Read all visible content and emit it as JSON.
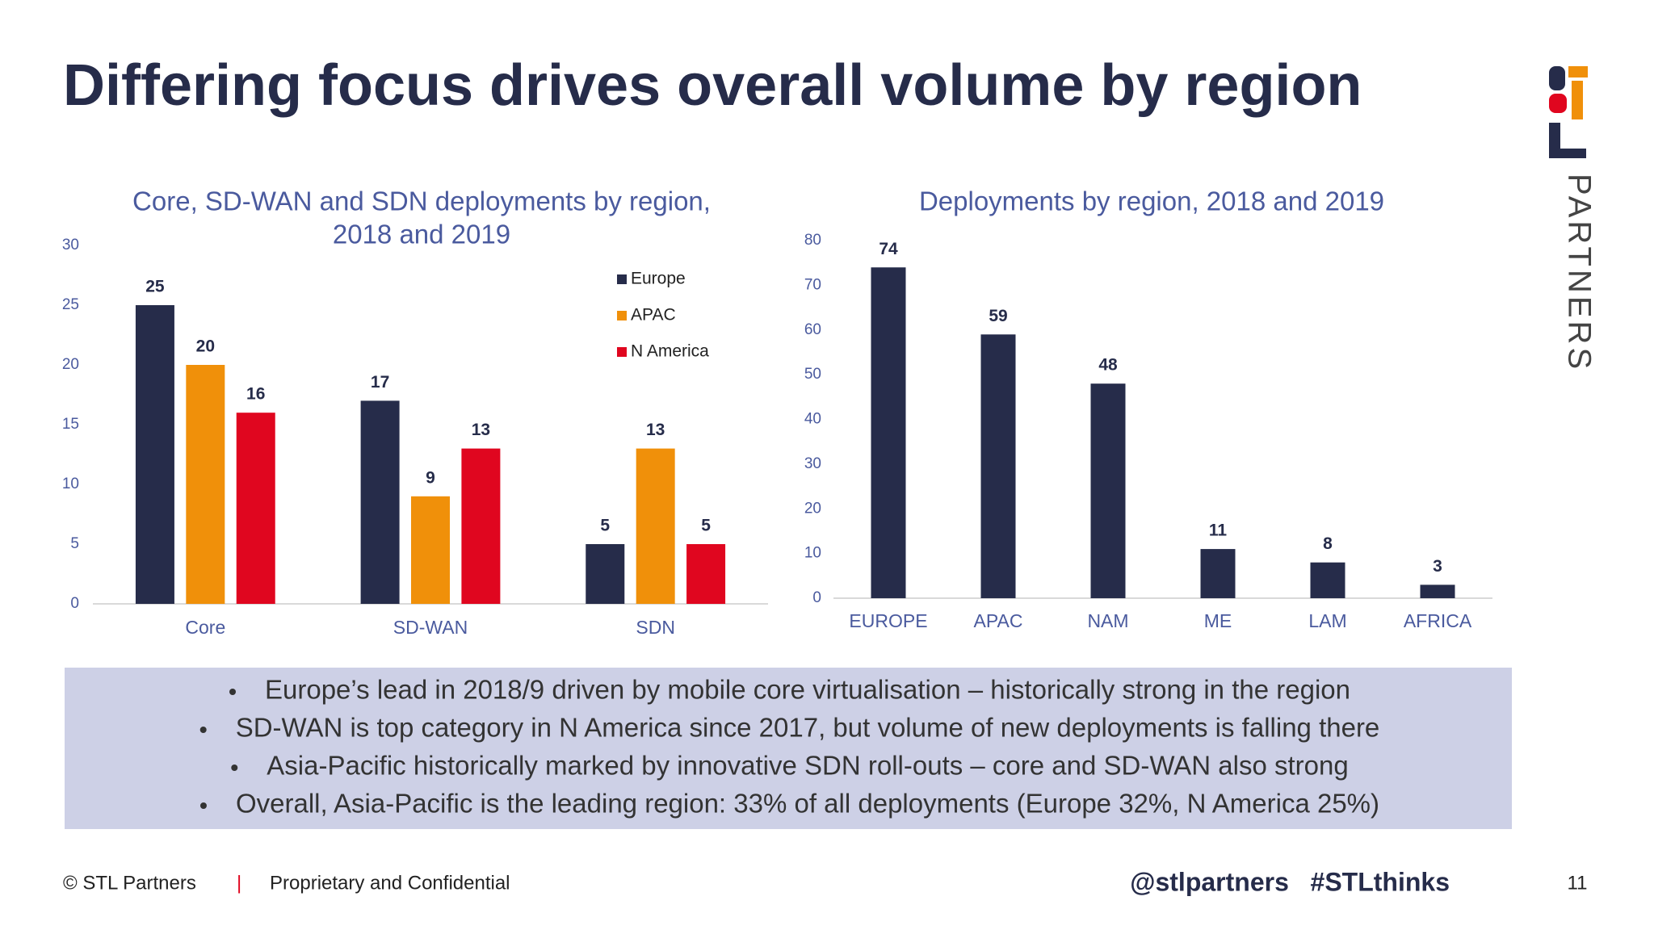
{
  "header": {
    "title": "Differing focus drives overall volume by region"
  },
  "logo": {
    "text": "PARTNERS"
  },
  "chart_data": [
    {
      "type": "bar",
      "title": [
        "Core, SD-WAN and SDN deployments by region,",
        "2018 and 2019"
      ],
      "categories": [
        "Core",
        "SD-WAN",
        "SDN"
      ],
      "series": [
        {
          "name": "Europe",
          "color": "#262c4a",
          "values": [
            25,
            17,
            5
          ]
        },
        {
          "name": "APAC",
          "color": "#f0900a",
          "values": [
            20,
            9,
            13
          ]
        },
        {
          "name": "N America",
          "color": "#e0061f",
          "values": [
            16,
            13,
            5
          ]
        }
      ],
      "ylim": [
        0,
        30
      ],
      "yticks": [
        0,
        5,
        10,
        15,
        20,
        25,
        30
      ],
      "grid": false,
      "legend": "top-right"
    },
    {
      "type": "bar",
      "title": "Deployments by region, 2018 and 2019",
      "categories": [
        "EUROPE",
        "APAC",
        "NAM",
        "ME",
        "LAM",
        "AFRICA"
      ],
      "values": [
        74,
        59,
        48,
        11,
        8,
        3
      ],
      "color": "#262c4a",
      "ylim": [
        0,
        80
      ],
      "yticks": [
        0,
        10,
        20,
        30,
        40,
        50,
        60,
        70,
        80
      ],
      "grid": false
    }
  ],
  "bullets": [
    "Europe’s lead in 2018/9 driven by mobile core virtualisation – historically strong in the region",
    "SD-WAN is top category in N America since 2017, but volume of new deployments is falling there",
    "Asia-Pacific historically marked by innovative SDN roll-outs – core and SD-WAN also strong",
    "Overall, Asia-Pacific is the leading region: 33% of all deployments (Europe 32%, N America 25%)"
  ],
  "footer": {
    "copyright": "© STL Partners",
    "separator": "|",
    "confidential": "Proprietary and Confidential",
    "handles": "@stlpartners   #STLthinks",
    "page": "11"
  }
}
